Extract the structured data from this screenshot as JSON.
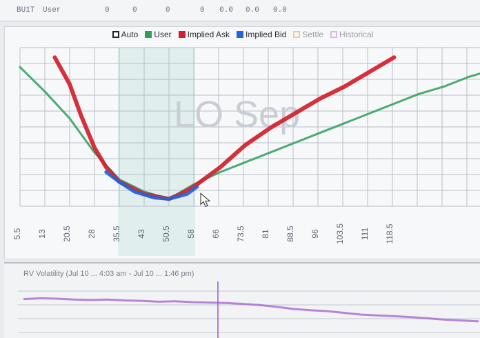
{
  "top_strip": {
    "cells": [
      "BU1T",
      "User",
      "0",
      "0",
      "0",
      "0",
      "0.0",
      "0.0",
      "0.0"
    ]
  },
  "legend": {
    "items": [
      {
        "label": "Auto",
        "color": "#222222",
        "filled": false
      },
      {
        "label": "User",
        "color": "#2e9e5b",
        "filled": true
      },
      {
        "label": "Implied Ask",
        "color": "#d11f2b",
        "filled": true
      },
      {
        "label": "Implied Bid",
        "color": "#2463d8",
        "filled": true
      },
      {
        "label": "Settle",
        "color": "#f08a3c",
        "filled": false
      },
      {
        "label": "Historical",
        "color": "#b56bd6",
        "filled": false
      }
    ]
  },
  "chart_data": {
    "type": "line",
    "watermark": "LO Sep",
    "x_ticks": [
      "5.5",
      "13",
      "20.5",
      "28",
      "35.5",
      "43",
      "50.5",
      "58",
      "66",
      "73.5",
      "81",
      "88.5",
      "96",
      "103.5",
      "111",
      "118.5",
      "",
      "",
      ""
    ],
    "series": [
      {
        "name": "User",
        "color": "#2e9e5b",
        "x": [
          5.5,
          13,
          20.5,
          28,
          35.5,
          43,
          50.5,
          58,
          66,
          73.5,
          81,
          88.5,
          96,
          103.5,
          111,
          118.5,
          126,
          133.5,
          141,
          148.5
        ],
        "y": [
          92,
          82,
          71,
          57,
          46,
          41,
          38,
          44,
          49,
          53,
          57,
          61,
          65,
          69,
          73,
          77,
          81,
          84,
          88,
          91
        ]
      },
      {
        "name": "Implied Ask",
        "color": "#d11f2b",
        "x": [
          16,
          20.5,
          24,
          28,
          31.5,
          35.5,
          43,
          50.5,
          54,
          58,
          66,
          73.5,
          81,
          88.5,
          96,
          103.5,
          111,
          118.5
        ],
        "y": [
          96,
          85,
          72,
          59,
          51,
          45,
          40,
          38,
          40,
          43,
          51,
          60,
          67,
          73,
          79,
          84,
          90,
          96
        ]
      },
      {
        "name": "Implied Bid",
        "color": "#2463d8",
        "x": [
          31.5,
          35.5,
          40,
          46,
          50.5,
          56,
          59
        ],
        "y": [
          49,
          45,
          41,
          38.5,
          38,
          40,
          43
        ]
      }
    ]
  },
  "lower_panel": {
    "caption": "RV Volatility (Jul 10 ... 4:03 am - Jul 10 ... 1:46 pm)",
    "series": {
      "name": "Historical",
      "color": "#a35fd0",
      "values": [
        0.78,
        0.8,
        0.79,
        0.77,
        0.76,
        0.77,
        0.75,
        0.74,
        0.72,
        0.73,
        0.71,
        0.7,
        0.69,
        0.67,
        0.64,
        0.6,
        0.55,
        0.52,
        0.5,
        0.46,
        0.42,
        0.4,
        0.38,
        0.36,
        0.33,
        0.3,
        0.28,
        0.26
      ]
    }
  },
  "cursor": {
    "icon": "mouse-pointer-icon"
  }
}
